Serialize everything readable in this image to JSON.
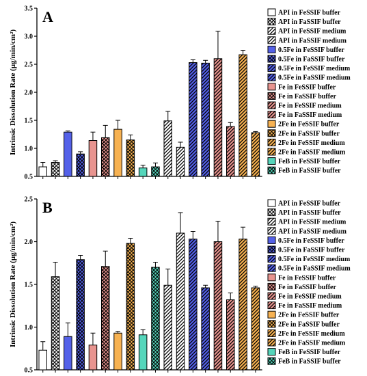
{
  "chart_data": [
    {
      "type": "bar",
      "panel_label": "A",
      "ylabel": "Intrinsic Dissolution Rate (µg/min/cm²)",
      "ylim": [
        0.5,
        3.5
      ],
      "yticks": [
        "0.5",
        "1.0",
        "1.5",
        "2.0",
        "2.5",
        "3.0",
        "3.5"
      ],
      "grid": false,
      "legend_position": "right",
      "series": [
        {
          "name": "API in FeSSIF buffer",
          "value": 0.67,
          "error": 0.08,
          "color": "#ffffff",
          "pattern": "none"
        },
        {
          "name": "API in FaSSIF buffer",
          "value": 0.75,
          "error": 0.03,
          "color": "#ffffff",
          "pattern": "cross"
        },
        {
          "name": "API in FeSSIF medium",
          "value": 1.49,
          "error": 0.17,
          "color": "#ffffff",
          "pattern": "diag"
        },
        {
          "name": "API in FaSSIF medium",
          "value": 1.02,
          "error": 0.09,
          "color": "#ffffff",
          "pattern": "diag"
        },
        {
          "name": "0.5Fe in FeSSIF buffer",
          "value": 1.29,
          "error": 0.02,
          "color": "#5461e8",
          "pattern": "none"
        },
        {
          "name": "0.5Fe in FaSSIF buffer",
          "value": 0.9,
          "error": 0.04,
          "color": "#5461e8",
          "pattern": "cross"
        },
        {
          "name": "0.5Fe in FeSSIF medium",
          "value": 2.53,
          "error": 0.05,
          "color": "#5461e8",
          "pattern": "diag"
        },
        {
          "name": "0.5Fe in FaSSIF medium",
          "value": 2.52,
          "error": 0.05,
          "color": "#5461e8",
          "pattern": "diag"
        },
        {
          "name": "Fe in FeSSIF buffer",
          "value": 1.14,
          "error": 0.15,
          "color": "#e8948f",
          "pattern": "none"
        },
        {
          "name": "Fe in FaSSIF buffer",
          "value": 1.19,
          "error": 0.22,
          "color": "#e8948f",
          "pattern": "cross"
        },
        {
          "name": "Fe in FeSSIF medium",
          "value": 2.6,
          "error": 0.49,
          "color": "#e8948f",
          "pattern": "diag"
        },
        {
          "name": "Fe in FaSSIF medium",
          "value": 1.39,
          "error": 0.07,
          "color": "#e8948f",
          "pattern": "diag"
        },
        {
          "name": "2Fe in FeSSIF buffer",
          "value": 1.34,
          "error": 0.16,
          "color": "#f7b252",
          "pattern": "none"
        },
        {
          "name": "2Fe in FaSSIF buffer",
          "value": 1.15,
          "error": 0.09,
          "color": "#f7b252",
          "pattern": "cross"
        },
        {
          "name": "2Fe in FeSSIF medium",
          "value": 2.67,
          "error": 0.08,
          "color": "#f7b252",
          "pattern": "diag"
        },
        {
          "name": "2Fe in FaSSIF medium",
          "value": 1.28,
          "error": 0.02,
          "color": "#f7b252",
          "pattern": "diag"
        },
        {
          "name": "FeB in FeSSIF buffer",
          "value": 0.65,
          "error": 0.05,
          "color": "#55d6bb",
          "pattern": "none"
        },
        {
          "name": "FeB in FaSSIF buffer",
          "value": 0.67,
          "error": 0.07,
          "color": "#55d6bb",
          "pattern": "cross"
        }
      ],
      "bar_order": [
        "API in FeSSIF buffer",
        "API in FaSSIF buffer",
        "0.5Fe in FeSSIF buffer",
        "0.5Fe in FaSSIF buffer",
        "Fe in FeSSIF buffer",
        "Fe in FaSSIF buffer",
        "2Fe in FeSSIF buffer",
        "2Fe in FaSSIF buffer",
        "FeB in FeSSIF buffer",
        "FeB in FaSSIF buffer",
        "API in FeSSIF medium",
        "API in FaSSIF medium",
        "0.5Fe in FeSSIF medium",
        "0.5Fe in FaSSIF medium",
        "Fe in FeSSIF medium",
        "Fe in FaSSIF medium",
        "2Fe in FeSSIF medium",
        "2Fe in FaSSIF medium"
      ]
    },
    {
      "type": "bar",
      "panel_label": "B",
      "ylabel": "Intrinsic Dissolution Rate (µg/min/cm²)",
      "ylim": [
        0.5,
        2.5
      ],
      "yticks": [
        "0.5",
        "1.0",
        "1.5",
        "2.0",
        "2.5"
      ],
      "grid": false,
      "legend_position": "right",
      "series": [
        {
          "name": "API in FeSSIF buffer",
          "value": 0.73,
          "error": 0.1,
          "color": "#ffffff",
          "pattern": "none"
        },
        {
          "name": "API in FaSSIF buffer",
          "value": 1.59,
          "error": 0.17,
          "color": "#ffffff",
          "pattern": "cross"
        },
        {
          "name": "API in FeSSIF medium",
          "value": 1.49,
          "error": 0.19,
          "color": "#ffffff",
          "pattern": "diag"
        },
        {
          "name": "API in FaSSIF medium",
          "value": 2.1,
          "error": 0.24,
          "color": "#ffffff",
          "pattern": "diag"
        },
        {
          "name": "0.5Fe in FeSSIF buffer",
          "value": 0.89,
          "error": 0.16,
          "color": "#5461e8",
          "pattern": "none"
        },
        {
          "name": "0.5Fe in FaSSIF buffer",
          "value": 1.79,
          "error": 0.05,
          "color": "#5461e8",
          "pattern": "cross"
        },
        {
          "name": "0.5Fe in FeSSIF medium",
          "value": 2.03,
          "error": 0.09,
          "color": "#5461e8",
          "pattern": "diag"
        },
        {
          "name": "0.5Fe in FaSSIF medium",
          "value": 1.46,
          "error": 0.03,
          "color": "#5461e8",
          "pattern": "diag"
        },
        {
          "name": "Fe in FeSSIF buffer",
          "value": 0.79,
          "error": 0.14,
          "color": "#e8948f",
          "pattern": "none"
        },
        {
          "name": "Fe in FaSSIF buffer",
          "value": 1.71,
          "error": 0.18,
          "color": "#e8948f",
          "pattern": "cross"
        },
        {
          "name": "Fe in FeSSIF medium",
          "value": 2.0,
          "error": 0.24,
          "color": "#e8948f",
          "pattern": "diag"
        },
        {
          "name": "Fe in FaSSIF medium",
          "value": 1.32,
          "error": 0.08,
          "color": "#e8948f",
          "pattern": "diag"
        },
        {
          "name": "2Fe in FeSSIF buffer",
          "value": 0.93,
          "error": 0.02,
          "color": "#f7b252",
          "pattern": "none"
        },
        {
          "name": "2Fe in FaSSIF buffer",
          "value": 1.98,
          "error": 0.06,
          "color": "#f7b252",
          "pattern": "cross"
        },
        {
          "name": "2Fe in FeSSIF medium",
          "value": 2.03,
          "error": 0.14,
          "color": "#f7b252",
          "pattern": "diag"
        },
        {
          "name": "2Fe in FaSSIF medium",
          "value": 1.46,
          "error": 0.02,
          "color": "#f7b252",
          "pattern": "diag"
        },
        {
          "name": "FeB in FeSSIF buffer",
          "value": 0.91,
          "error": 0.06,
          "color": "#55d6bb",
          "pattern": "none"
        },
        {
          "name": "FeB in FaSSIF buffer",
          "value": 1.7,
          "error": 0.06,
          "color": "#55d6bb",
          "pattern": "cross"
        }
      ],
      "bar_order": [
        "API in FeSSIF buffer",
        "API in FaSSIF buffer",
        "0.5Fe in FeSSIF buffer",
        "0.5Fe in FaSSIF buffer",
        "Fe in FeSSIF buffer",
        "Fe in FaSSIF buffer",
        "2Fe in FeSSIF buffer",
        "2Fe in FaSSIF buffer",
        "FeB in FeSSIF buffer",
        "FeB in FaSSIF buffer",
        "API in FeSSIF medium",
        "API in FaSSIF medium",
        "0.5Fe in FeSSIF medium",
        "0.5Fe in FaSSIF medium",
        "Fe in FeSSIF medium",
        "Fe in FaSSIF medium",
        "2Fe in FeSSIF medium",
        "2Fe in FaSSIF medium"
      ]
    }
  ]
}
